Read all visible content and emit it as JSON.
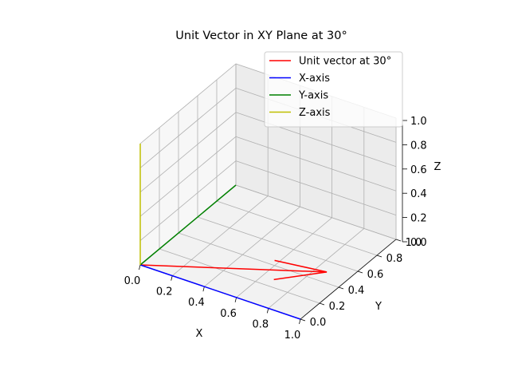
{
  "chart_data": {
    "type": "line",
    "projection": "3d",
    "title": "Unit Vector in XY Plane at 30°",
    "xlabel": "X",
    "ylabel": "Y",
    "zlabel": "Z",
    "xlim": [
      0,
      1
    ],
    "ylim": [
      0,
      1
    ],
    "zlim": [
      0,
      1
    ],
    "grid": true,
    "legend_position": "top-right",
    "xticks": [
      "0.0",
      "0.2",
      "0.4",
      "0.6",
      "0.8",
      "1.0"
    ],
    "yticks": [
      "0.0",
      "0.2",
      "0.4",
      "0.6",
      "0.8",
      "1.0"
    ],
    "zticks": [
      "0.0",
      "0.2",
      "0.4",
      "0.6",
      "0.8",
      "1.0"
    ],
    "tick_values": [
      0,
      0.2,
      0.4,
      0.6,
      0.8,
      1.0
    ],
    "series": [
      {
        "name": "Unit vector at 30°",
        "color": "#ff0000",
        "kind": "arrow",
        "start": [
          0,
          0,
          0
        ],
        "end": [
          0.866,
          0.5,
          0
        ]
      },
      {
        "name": "X-axis",
        "color": "#0000ff",
        "kind": "line",
        "start": [
          0,
          0,
          0
        ],
        "end": [
          1,
          0,
          0
        ]
      },
      {
        "name": "Y-axis",
        "color": "#008000",
        "kind": "line",
        "start": [
          0,
          0,
          0
        ],
        "end": [
          0,
          1,
          0
        ]
      },
      {
        "name": "Z-axis",
        "color": "#bfbf00",
        "kind": "line",
        "start": [
          0,
          0,
          0
        ],
        "end": [
          0,
          0,
          1
        ]
      }
    ]
  }
}
